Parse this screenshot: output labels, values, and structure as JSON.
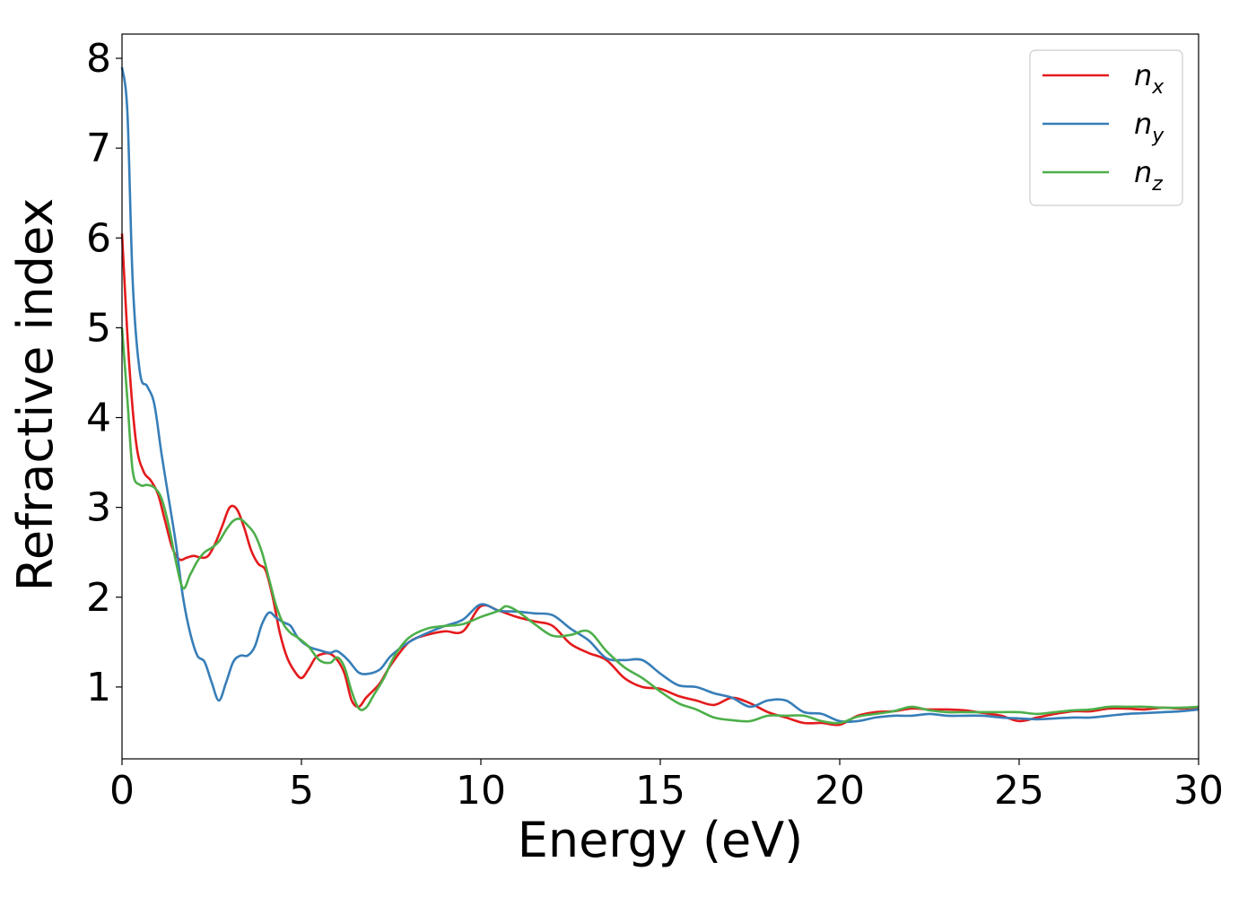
{
  "chart_data": {
    "type": "line",
    "xlabel": "Energy (eV)",
    "ylabel": "Refractive index",
    "xlim": [
      0,
      30
    ],
    "ylim": [
      0.2,
      8.27
    ],
    "xticks": [
      0,
      5,
      10,
      15,
      20,
      25,
      30
    ],
    "yticks": [
      1,
      2,
      3,
      4,
      5,
      6,
      7,
      8
    ],
    "grid": false,
    "legend_position": "top-right",
    "series": [
      {
        "name": "n",
        "subscript": "x",
        "color": "#e41a1c",
        "points": [
          [
            0,
            6.05
          ],
          [
            0.2,
            4.6
          ],
          [
            0.4,
            3.7
          ],
          [
            0.6,
            3.4
          ],
          [
            0.8,
            3.3
          ],
          [
            1.0,
            3.15
          ],
          [
            1.2,
            2.85
          ],
          [
            1.4,
            2.55
          ],
          [
            1.6,
            2.42
          ],
          [
            1.8,
            2.44
          ],
          [
            2.0,
            2.46
          ],
          [
            2.2,
            2.44
          ],
          [
            2.4,
            2.46
          ],
          [
            2.6,
            2.6
          ],
          [
            2.8,
            2.8
          ],
          [
            3.0,
            3.0
          ],
          [
            3.2,
            2.98
          ],
          [
            3.4,
            2.78
          ],
          [
            3.6,
            2.52
          ],
          [
            3.8,
            2.37
          ],
          [
            4.0,
            2.3
          ],
          [
            4.2,
            2.0
          ],
          [
            4.4,
            1.6
          ],
          [
            4.6,
            1.33
          ],
          [
            4.8,
            1.18
          ],
          [
            5.0,
            1.1
          ],
          [
            5.2,
            1.2
          ],
          [
            5.4,
            1.33
          ],
          [
            5.6,
            1.37
          ],
          [
            5.8,
            1.37
          ],
          [
            6.0,
            1.3
          ],
          [
            6.2,
            1.15
          ],
          [
            6.4,
            0.85
          ],
          [
            6.6,
            0.78
          ],
          [
            6.8,
            0.88
          ],
          [
            7.0,
            0.96
          ],
          [
            7.2,
            1.05
          ],
          [
            7.5,
            1.25
          ],
          [
            8.0,
            1.5
          ],
          [
            8.5,
            1.58
          ],
          [
            9.0,
            1.62
          ],
          [
            9.5,
            1.62
          ],
          [
            10.0,
            1.9
          ],
          [
            10.5,
            1.85
          ],
          [
            11.0,
            1.78
          ],
          [
            11.5,
            1.73
          ],
          [
            12.0,
            1.68
          ],
          [
            12.5,
            1.48
          ],
          [
            13.0,
            1.38
          ],
          [
            13.5,
            1.3
          ],
          [
            14.0,
            1.1
          ],
          [
            14.5,
            1.0
          ],
          [
            15.0,
            0.98
          ],
          [
            15.5,
            0.9
          ],
          [
            16.0,
            0.85
          ],
          [
            16.5,
            0.8
          ],
          [
            17.0,
            0.88
          ],
          [
            17.5,
            0.82
          ],
          [
            18.0,
            0.72
          ],
          [
            18.5,
            0.66
          ],
          [
            19.0,
            0.6
          ],
          [
            19.5,
            0.6
          ],
          [
            20.0,
            0.58
          ],
          [
            20.5,
            0.68
          ],
          [
            21.0,
            0.72
          ],
          [
            21.5,
            0.73
          ],
          [
            22.0,
            0.76
          ],
          [
            22.5,
            0.75
          ],
          [
            23.0,
            0.75
          ],
          [
            23.5,
            0.74
          ],
          [
            24.0,
            0.71
          ],
          [
            24.5,
            0.68
          ],
          [
            25.0,
            0.62
          ],
          [
            25.5,
            0.66
          ],
          [
            26.0,
            0.7
          ],
          [
            26.5,
            0.73
          ],
          [
            27.0,
            0.73
          ],
          [
            27.5,
            0.76
          ],
          [
            28.0,
            0.76
          ],
          [
            28.5,
            0.75
          ],
          [
            29.0,
            0.77
          ],
          [
            29.5,
            0.76
          ],
          [
            30.0,
            0.77
          ]
        ]
      },
      {
        "name": "n",
        "subscript": "y",
        "color": "#377eb8",
        "points": [
          [
            0,
            7.9
          ],
          [
            0.15,
            7.4
          ],
          [
            0.3,
            5.5
          ],
          [
            0.5,
            4.5
          ],
          [
            0.7,
            4.35
          ],
          [
            0.9,
            4.15
          ],
          [
            1.1,
            3.6
          ],
          [
            1.3,
            3.1
          ],
          [
            1.5,
            2.6
          ],
          [
            1.7,
            2.0
          ],
          [
            1.9,
            1.6
          ],
          [
            2.1,
            1.35
          ],
          [
            2.3,
            1.28
          ],
          [
            2.5,
            1.05
          ],
          [
            2.7,
            0.85
          ],
          [
            2.9,
            1.05
          ],
          [
            3.1,
            1.28
          ],
          [
            3.3,
            1.35
          ],
          [
            3.5,
            1.35
          ],
          [
            3.7,
            1.45
          ],
          [
            3.9,
            1.7
          ],
          [
            4.1,
            1.83
          ],
          [
            4.3,
            1.77
          ],
          [
            4.5,
            1.72
          ],
          [
            4.7,
            1.68
          ],
          [
            4.9,
            1.55
          ],
          [
            5.2,
            1.45
          ],
          [
            5.5,
            1.41
          ],
          [
            5.8,
            1.38
          ],
          [
            6.0,
            1.4
          ],
          [
            6.3,
            1.3
          ],
          [
            6.6,
            1.16
          ],
          [
            6.9,
            1.15
          ],
          [
            7.2,
            1.2
          ],
          [
            7.5,
            1.35
          ],
          [
            8.0,
            1.5
          ],
          [
            8.5,
            1.6
          ],
          [
            9.0,
            1.68
          ],
          [
            9.5,
            1.75
          ],
          [
            10.0,
            1.92
          ],
          [
            10.5,
            1.85
          ],
          [
            11.0,
            1.84
          ],
          [
            11.5,
            1.82
          ],
          [
            12.0,
            1.8
          ],
          [
            12.5,
            1.65
          ],
          [
            13.0,
            1.52
          ],
          [
            13.5,
            1.32
          ],
          [
            14.0,
            1.3
          ],
          [
            14.5,
            1.3
          ],
          [
            15.0,
            1.15
          ],
          [
            15.5,
            1.02
          ],
          [
            16.0,
            1.0
          ],
          [
            16.5,
            0.93
          ],
          [
            17.0,
            0.88
          ],
          [
            17.5,
            0.78
          ],
          [
            18.0,
            0.85
          ],
          [
            18.5,
            0.85
          ],
          [
            19.0,
            0.72
          ],
          [
            19.5,
            0.7
          ],
          [
            20.0,
            0.62
          ],
          [
            20.5,
            0.62
          ],
          [
            21.0,
            0.66
          ],
          [
            21.5,
            0.68
          ],
          [
            22.0,
            0.68
          ],
          [
            22.5,
            0.7
          ],
          [
            23.0,
            0.68
          ],
          [
            23.5,
            0.68
          ],
          [
            24.0,
            0.68
          ],
          [
            24.5,
            0.66
          ],
          [
            25.0,
            0.65
          ],
          [
            25.5,
            0.64
          ],
          [
            26.0,
            0.65
          ],
          [
            26.5,
            0.66
          ],
          [
            27.0,
            0.66
          ],
          [
            27.5,
            0.68
          ],
          [
            28.0,
            0.7
          ],
          [
            28.5,
            0.71
          ],
          [
            29.0,
            0.72
          ],
          [
            29.5,
            0.73
          ],
          [
            30.0,
            0.75
          ]
        ]
      },
      {
        "name": "n",
        "subscript": "z",
        "color": "#4daf4a",
        "points": [
          [
            0,
            5.0
          ],
          [
            0.15,
            4.2
          ],
          [
            0.3,
            3.4
          ],
          [
            0.5,
            3.25
          ],
          [
            0.7,
            3.25
          ],
          [
            0.9,
            3.22
          ],
          [
            1.1,
            3.1
          ],
          [
            1.3,
            2.8
          ],
          [
            1.5,
            2.4
          ],
          [
            1.7,
            2.1
          ],
          [
            1.9,
            2.25
          ],
          [
            2.1,
            2.4
          ],
          [
            2.3,
            2.5
          ],
          [
            2.5,
            2.55
          ],
          [
            2.7,
            2.62
          ],
          [
            2.9,
            2.75
          ],
          [
            3.1,
            2.85
          ],
          [
            3.3,
            2.87
          ],
          [
            3.5,
            2.8
          ],
          [
            3.7,
            2.7
          ],
          [
            3.9,
            2.5
          ],
          [
            4.1,
            2.2
          ],
          [
            4.3,
            1.9
          ],
          [
            4.5,
            1.7
          ],
          [
            4.7,
            1.6
          ],
          [
            4.9,
            1.55
          ],
          [
            5.2,
            1.45
          ],
          [
            5.5,
            1.3
          ],
          [
            5.8,
            1.27
          ],
          [
            6.0,
            1.33
          ],
          [
            6.2,
            1.22
          ],
          [
            6.4,
            0.95
          ],
          [
            6.6,
            0.76
          ],
          [
            6.8,
            0.77
          ],
          [
            7.0,
            0.9
          ],
          [
            7.3,
            1.1
          ],
          [
            7.6,
            1.35
          ],
          [
            8.0,
            1.55
          ],
          [
            8.5,
            1.65
          ],
          [
            9.0,
            1.68
          ],
          [
            9.5,
            1.7
          ],
          [
            10.0,
            1.78
          ],
          [
            10.5,
            1.85
          ],
          [
            10.7,
            1.9
          ],
          [
            11.0,
            1.85
          ],
          [
            11.5,
            1.7
          ],
          [
            12.0,
            1.57
          ],
          [
            12.5,
            1.58
          ],
          [
            13.0,
            1.62
          ],
          [
            13.5,
            1.4
          ],
          [
            14.0,
            1.22
          ],
          [
            14.5,
            1.1
          ],
          [
            15.0,
            0.95
          ],
          [
            15.5,
            0.82
          ],
          [
            16.0,
            0.75
          ],
          [
            16.5,
            0.66
          ],
          [
            17.0,
            0.63
          ],
          [
            17.5,
            0.62
          ],
          [
            18.0,
            0.68
          ],
          [
            18.5,
            0.68
          ],
          [
            19.0,
            0.68
          ],
          [
            19.5,
            0.62
          ],
          [
            20.0,
            0.6
          ],
          [
            20.5,
            0.67
          ],
          [
            21.0,
            0.7
          ],
          [
            21.5,
            0.73
          ],
          [
            22.0,
            0.78
          ],
          [
            22.5,
            0.74
          ],
          [
            23.0,
            0.72
          ],
          [
            23.5,
            0.72
          ],
          [
            24.0,
            0.72
          ],
          [
            24.5,
            0.72
          ],
          [
            25.0,
            0.72
          ],
          [
            25.5,
            0.7
          ],
          [
            26.0,
            0.72
          ],
          [
            26.5,
            0.74
          ],
          [
            27.0,
            0.75
          ],
          [
            27.5,
            0.78
          ],
          [
            28.0,
            0.78
          ],
          [
            28.5,
            0.78
          ],
          [
            29.0,
            0.77
          ],
          [
            29.5,
            0.77
          ],
          [
            30.0,
            0.78
          ]
        ]
      }
    ]
  }
}
